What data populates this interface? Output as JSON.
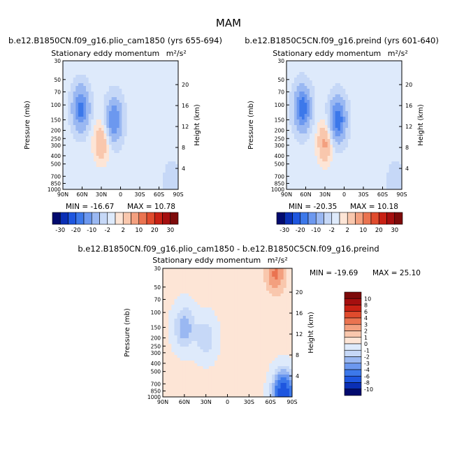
{
  "page_title": "MAM",
  "colors": {
    "full_scale": [
      "#020a6e",
      "#0a2fb5",
      "#1e56df",
      "#3c78ea",
      "#6c98ef",
      "#9ab8f2",
      "#c6d8f7",
      "#deeafb",
      "#fde5d6",
      "#f9c7ad",
      "#f3a07f",
      "#ea7350",
      "#e04b2d",
      "#c82114",
      "#a50f0f",
      "#7d0a0a"
    ],
    "diff_scale": [
      "#020a6e",
      "#0a2fb5",
      "#1e56df",
      "#3c78ea",
      "#6c98ef",
      "#9ab8f2",
      "#c6d8f7",
      "#deeafb",
      "#fde5d6",
      "#f9c7ad",
      "#f3a07f",
      "#ea7350",
      "#e04b2d",
      "#c82114",
      "#a50f0f",
      "#7d0a0a"
    ]
  },
  "chart_data": [
    {
      "type": "heatmap",
      "run_label": "b.e12.B1850CN.f09_g16.plio_cam1850 (yrs 655-694)",
      "title": "Stationary eddy momentum",
      "units": "m²/s²",
      "ylabel": "Pressure (mb)",
      "ylabel_right": "Height (km)",
      "x_ticks": [
        "90N",
        "60N",
        "30N",
        "0",
        "30S",
        "60S",
        "90S"
      ],
      "y_ticks": [
        "30",
        "50",
        "70",
        "100",
        "150",
        "200",
        "250",
        "300",
        "400",
        "500",
        "700",
        "850",
        "1000"
      ],
      "height_ticks": [
        "4",
        "8",
        "12",
        "16",
        "20"
      ],
      "min_label": "MIN = -16.67",
      "max_label": "MAX = 10.78",
      "colorbar_labels": [
        "-30",
        "-20",
        "-10",
        "-2",
        "2",
        "10",
        "20",
        "30"
      ],
      "features": [
        {
          "lat": 62,
          "p": 110,
          "value": -16
        },
        {
          "lat": 10,
          "p": 150,
          "value": -14
        },
        {
          "lat": 30,
          "p": 280,
          "value": 6
        },
        {
          "lat": -80,
          "p": 850,
          "value": -3
        }
      ],
      "min": -16.67,
      "max": 10.78
    },
    {
      "type": "heatmap",
      "run_label": "b.e12.B1850C5CN.f09_g16.preind (yrs 601-640)",
      "title": "Stationary eddy momentum",
      "units": "m²/s²",
      "ylabel": "Pressure (mb)",
      "ylabel_right": "Height (km)",
      "x_ticks": [
        "90N",
        "60N",
        "30N",
        "0",
        "30S",
        "60S",
        "90S"
      ],
      "y_ticks": [
        "30",
        "50",
        "70",
        "100",
        "150",
        "200",
        "250",
        "300",
        "400",
        "500",
        "700",
        "850",
        "1000"
      ],
      "height_ticks": [
        "4",
        "8",
        "12",
        "16",
        "20"
      ],
      "min_label": "MIN = -20.35",
      "max_label": "MAX = 10.18",
      "colorbar_labels": [
        "-30",
        "-20",
        "-10",
        "-2",
        "2",
        "10",
        "20",
        "30"
      ],
      "features": [
        {
          "lat": 65,
          "p": 110,
          "value": -18
        },
        {
          "lat": 10,
          "p": 150,
          "value": -18
        },
        {
          "lat": 30,
          "p": 280,
          "value": 7
        },
        {
          "lat": -80,
          "p": 850,
          "value": -3
        }
      ],
      "min": -20.35,
      "max": 10.18
    },
    {
      "type": "heatmap",
      "run_label": "b.e12.B1850CN.f09_g16.plio_cam1850 - b.e12.B1850C5CN.f09_g16.preind",
      "title": "Stationary eddy momentum",
      "units": "m²/s²",
      "ylabel": "Pressure (mb)",
      "ylabel_right": "Height (km)",
      "x_ticks": [
        "90N",
        "60N",
        "30N",
        "0",
        "30S",
        "60S",
        "90S"
      ],
      "y_ticks": [
        "30",
        "50",
        "70",
        "100",
        "150",
        "200",
        "250",
        "300",
        "400",
        "500",
        "700",
        "850",
        "1000"
      ],
      "height_ticks": [
        "4",
        "8",
        "12",
        "16",
        "20"
      ],
      "min_label": "MIN = -19.69",
      "max_label": "MAX = 25.10",
      "colorbar_labels": [
        "10",
        "8",
        "6",
        "4",
        "3",
        "2",
        "1",
        "0",
        "-1",
        "-2",
        "-3",
        "-4",
        "-6",
        "-8",
        "-10"
      ],
      "features": [
        {
          "lat": -67,
          "p": 35,
          "value": 3
        },
        {
          "lat": 60,
          "p": 150,
          "value": -3
        },
        {
          "lat": 30,
          "p": 200,
          "value": -2
        },
        {
          "lat": -78,
          "p": 900,
          "value": -8
        }
      ],
      "min": -19.69,
      "max": 25.1
    }
  ]
}
